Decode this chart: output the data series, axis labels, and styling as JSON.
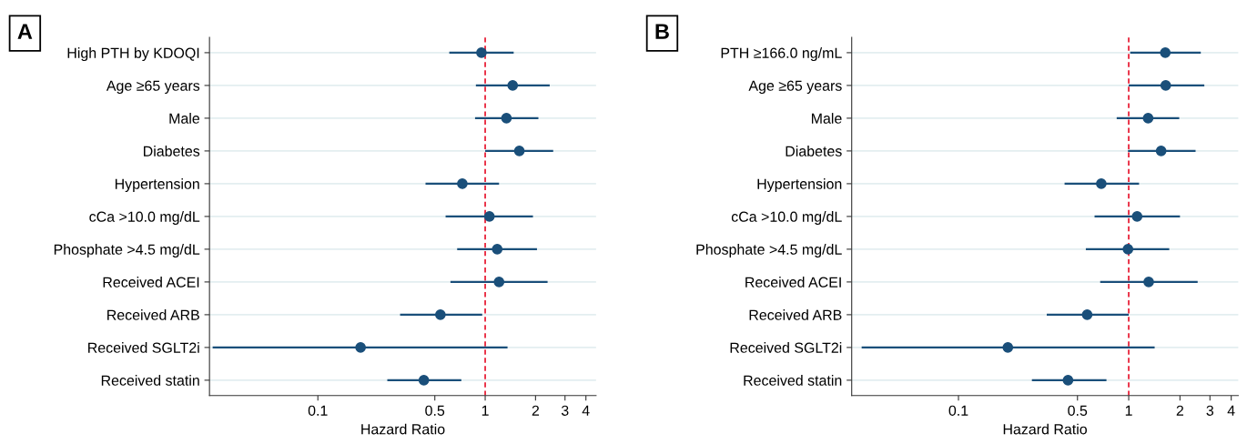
{
  "chart_data": [
    {
      "type": "scatter",
      "title": "A",
      "xlabel": "Hazard Ratio",
      "orientation": "horizontal",
      "log": "x",
      "grid": "y",
      "marker": "circle",
      "categories": [
        "High PTH by KDOQI",
        "Age ≥65 years",
        "Male",
        "Diabetes",
        "Hypertension",
        "cCa >10.0 mg/dL",
        "Phosphate >4.5 mg/dL",
        "Received ACEI",
        "Received ARB",
        "Received SGLT2i",
        "Received statin"
      ],
      "series": [
        {
          "color": "#1a4f7a",
          "values": [
            0.95,
            1.46,
            1.34,
            1.6,
            0.73,
            1.06,
            1.18,
            1.21,
            0.54,
            0.18,
            0.43
          ],
          "errors": [
            [
              0.61,
              1.48
            ],
            [
              0.88,
              2.43
            ],
            [
              0.87,
              2.08
            ],
            [
              1.0,
              2.55
            ],
            [
              0.44,
              1.21
            ],
            [
              0.58,
              1.93
            ],
            [
              0.68,
              2.04
            ],
            [
              0.62,
              2.36
            ],
            [
              0.31,
              0.96
            ],
            [
              0.0235,
              1.36
            ],
            [
              0.26,
              0.72
            ]
          ]
        }
      ],
      "xlim": [
        0.0225,
        4.6
      ],
      "xticks": [
        0.1,
        0.5,
        1,
        2,
        3,
        4
      ],
      "ref_lines": [
        {
          "axis": "x",
          "value": 1,
          "color": "#e8233a",
          "line_style": "dashed"
        }
      ]
    },
    {
      "type": "scatter",
      "title": "B",
      "xlabel": "Hazard Ratio",
      "orientation": "horizontal",
      "log": "x",
      "grid": "y",
      "marker": "circle",
      "categories": [
        "PTH ≥166.0 ng/mL",
        "Age ≥65 years",
        "Male",
        "Diabetes",
        "Hypertension",
        "cCa >10.0 mg/dL",
        "Phosphate >4.5 mg/dL",
        "Received ACEI",
        "Received ARB",
        "Received SGLT2i",
        "Received statin"
      ],
      "series": [
        {
          "color": "#1a4f7a",
          "values": [
            1.64,
            1.65,
            1.3,
            1.55,
            0.69,
            1.12,
            0.99,
            1.31,
            0.57,
            0.195,
            0.44
          ],
          "errors": [
            [
              1.02,
              2.65
            ],
            [
              1.0,
              2.78
            ],
            [
              0.85,
              1.98
            ],
            [
              0.99,
              2.47
            ],
            [
              0.42,
              1.15
            ],
            [
              0.63,
              2.0
            ],
            [
              0.56,
              1.73
            ],
            [
              0.68,
              2.54
            ],
            [
              0.33,
              1.0
            ],
            [
              0.027,
              1.42
            ],
            [
              0.27,
              0.74
            ]
          ]
        }
      ],
      "xlim": [
        0.0236,
        4.4
      ],
      "xticks": [
        0.1,
        0.5,
        1,
        2,
        3,
        4
      ],
      "ref_lines": [
        {
          "axis": "x",
          "value": 1,
          "color": "#e8233a",
          "line_style": "dashed"
        }
      ]
    }
  ]
}
